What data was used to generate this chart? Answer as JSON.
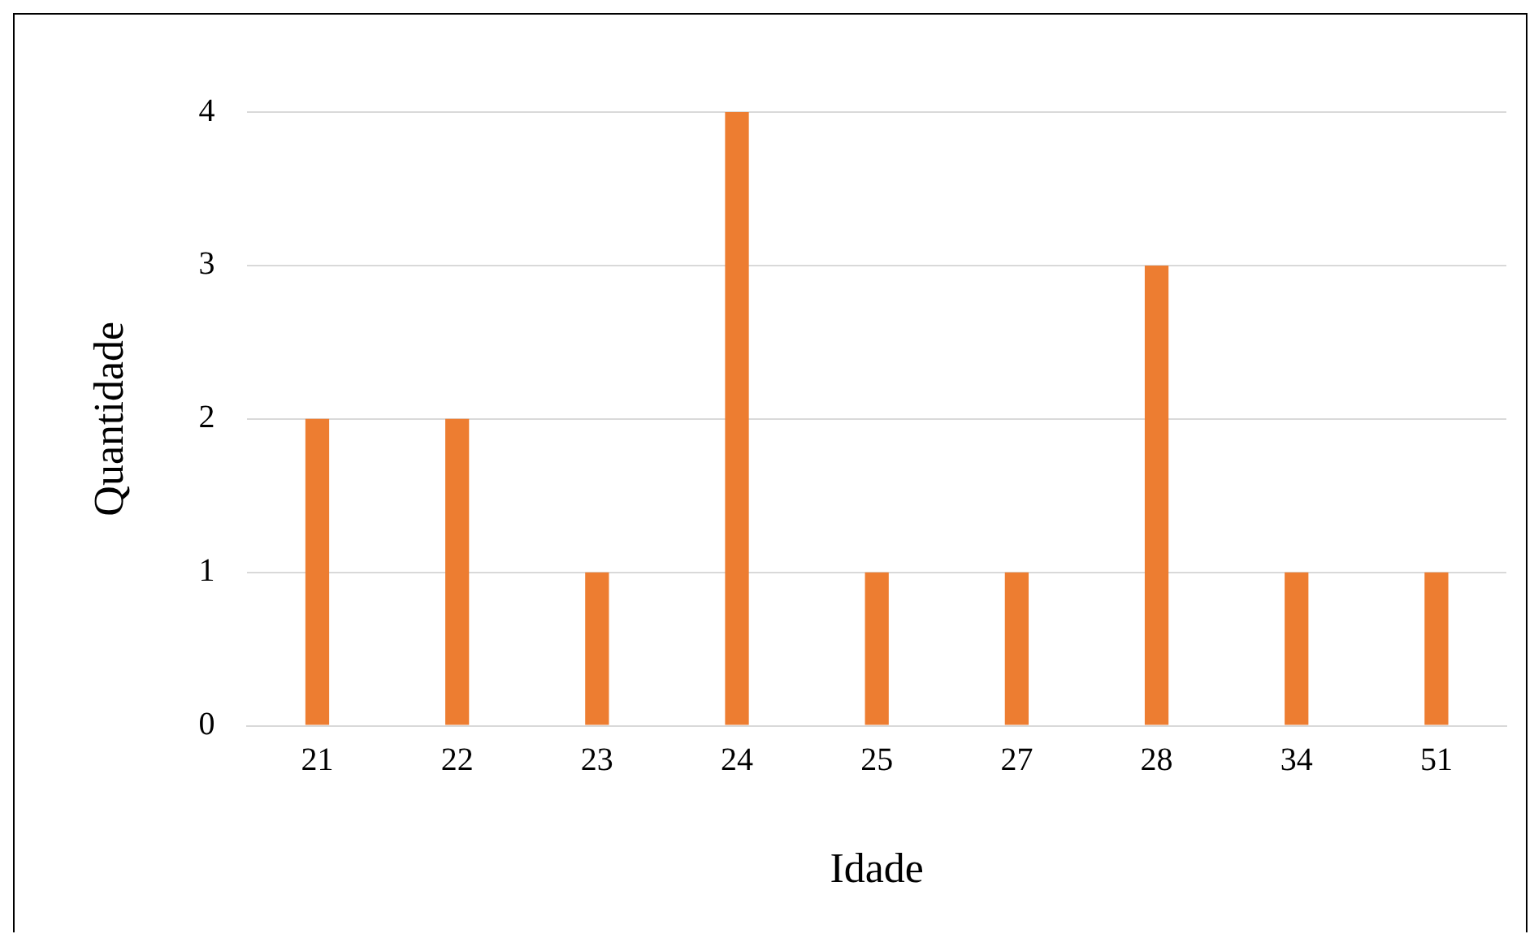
{
  "chart_data": {
    "type": "bar",
    "xlabel": "Idade",
    "ylabel": "Quantidade",
    "categories": [
      "21",
      "22",
      "23",
      "24",
      "25",
      "27",
      "28",
      "34",
      "51"
    ],
    "values": [
      2,
      2,
      1,
      4,
      1,
      1,
      3,
      1,
      1
    ],
    "color": "#ed7d31",
    "ylim": [
      0,
      4
    ],
    "yticks": [
      0,
      1,
      2,
      3,
      4
    ],
    "grid": "y"
  }
}
